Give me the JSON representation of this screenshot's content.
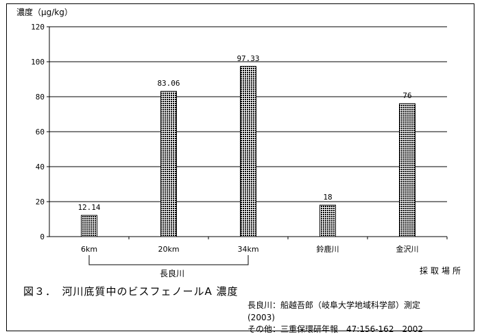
{
  "chart_data": {
    "type": "bar",
    "unit_label": "濃度（μg/kg）",
    "categories": [
      "6km",
      "20km",
      "34km",
      "鈴鹿川",
      "金沢川"
    ],
    "values": [
      12.14,
      83.06,
      97.33,
      18,
      76
    ],
    "value_labels": [
      "12.14",
      "83.06",
      "97.33",
      "18",
      "76"
    ],
    "ylim": [
      0,
      120
    ],
    "yticks": [
      0,
      20,
      40,
      60,
      80,
      100,
      120
    ],
    "grid": true,
    "xaxis_title": "採取場所",
    "group_label": "長良川",
    "bar_color": "#000000",
    "bar_pattern": "dotted"
  },
  "caption": "図３．　河川底質中のビスフェノールA 濃度",
  "sources": [
    "長良川：船越吾郎（岐阜大学地域科学部）測定",
    "(2003)",
    "その他：三重保環研年報　47:156-162　2002"
  ]
}
